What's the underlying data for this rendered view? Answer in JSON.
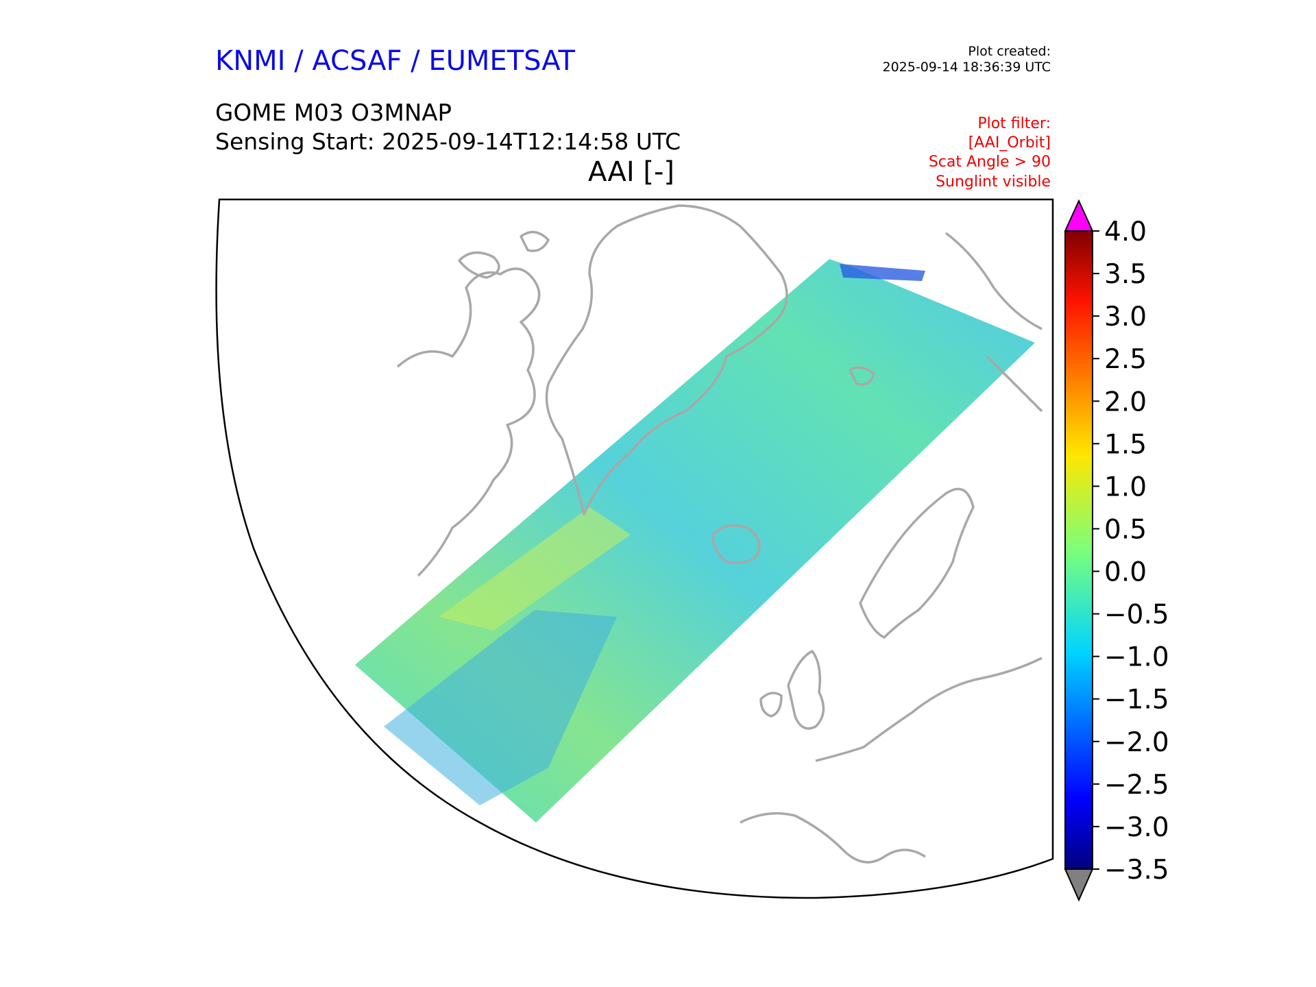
{
  "header": {
    "org": "KNMI / ACSAF / EUMETSAT",
    "created_label": "Plot created:",
    "created_value": "2025-09-14 18:36:39 UTC",
    "product": "GOME M03 O3MNAP",
    "sensing": "Sensing Start: 2025-09-14T12:14:58 UTC",
    "variable": "AAI [-]"
  },
  "filters": [
    "Plot filter:",
    "[AAI_Orbit]",
    "Scat Angle > 90",
    "Sunglint visible"
  ],
  "colorbar": {
    "min": -3.5,
    "max": 4.0,
    "ticks": [
      "4.0",
      "3.5",
      "3.0",
      "2.5",
      "2.0",
      "1.5",
      "1.0",
      "0.5",
      "0.0",
      "−0.5",
      "−1.0",
      "−1.5",
      "−2.0",
      "−2.5",
      "−3.0",
      "−3.5"
    ],
    "colormap": "jet",
    "extend_over_color": "#ff00ff",
    "extend_under_color": "#808080"
  },
  "colors": {
    "title": "#0a0ae6",
    "filter_text": "#f00000",
    "coastline": "#a8a8a8"
  }
}
